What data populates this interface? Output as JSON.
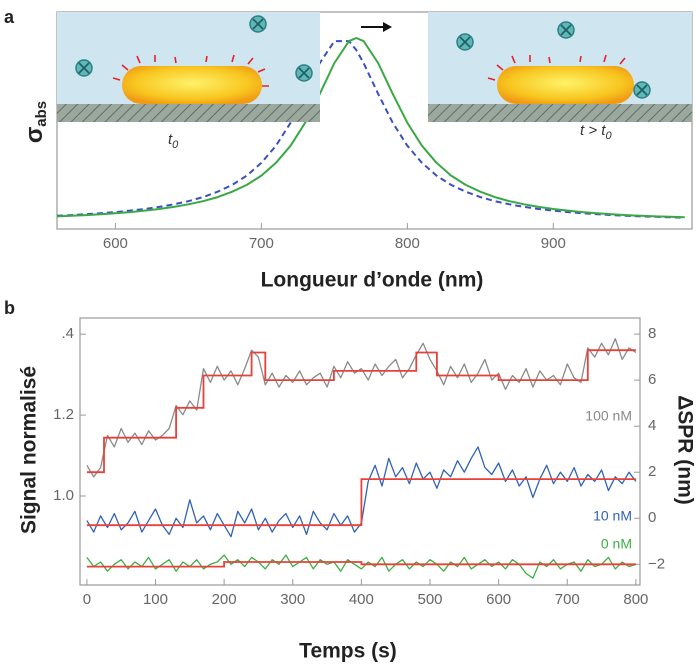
{
  "chart_data": [
    {
      "type": "line",
      "panel_label": "a",
      "x_label": "Longueur d’onde  (nm)",
      "y_label": {
        "main": "σ",
        "sub": "abs"
      },
      "xlim": [
        560,
        995
      ],
      "ylim": [
        0,
        1
      ],
      "xticks": [
        600,
        700,
        800,
        900
      ],
      "x": [
        560,
        570,
        580,
        590,
        600,
        610,
        620,
        630,
        640,
        650,
        660,
        670,
        680,
        690,
        700,
        710,
        720,
        730,
        740,
        750,
        760,
        765,
        770,
        780,
        790,
        800,
        810,
        820,
        830,
        840,
        850,
        860,
        870,
        880,
        890,
        900,
        910,
        920,
        930,
        940,
        950,
        960,
        970,
        980,
        990
      ],
      "series": [
        {
          "color": "#3b4fc4",
          "style": "dashed",
          "values": [
            0.061,
            0.064,
            0.068,
            0.073,
            0.078,
            0.085,
            0.092,
            0.102,
            0.114,
            0.128,
            0.147,
            0.172,
            0.203,
            0.246,
            0.305,
            0.384,
            0.49,
            0.623,
            0.765,
            0.866,
            0.866,
            0.825,
            0.765,
            0.623,
            0.49,
            0.384,
            0.305,
            0.246,
            0.203,
            0.172,
            0.147,
            0.128,
            0.114,
            0.102,
            0.092,
            0.085,
            0.078,
            0.073,
            0.068,
            0.064,
            0.061,
            0.058,
            0.056,
            0.054,
            0.052
          ]
        },
        {
          "color": "#3aa845",
          "style": "solid",
          "values": [
            0.058,
            0.061,
            0.064,
            0.068,
            0.073,
            0.078,
            0.085,
            0.092,
            0.102,
            0.114,
            0.128,
            0.147,
            0.172,
            0.203,
            0.246,
            0.305,
            0.384,
            0.49,
            0.623,
            0.765,
            0.866,
            0.88,
            0.866,
            0.765,
            0.623,
            0.49,
            0.384,
            0.305,
            0.246,
            0.203,
            0.172,
            0.147,
            0.128,
            0.114,
            0.102,
            0.092,
            0.085,
            0.078,
            0.073,
            0.068,
            0.064,
            0.061,
            0.058,
            0.056,
            0.054
          ]
        }
      ],
      "insets": [
        {
          "main": "t",
          "sub": "0"
        },
        {
          "main": "t > t",
          "sub": "0"
        }
      ]
    },
    {
      "type": "line",
      "panel_label": "b",
      "x_label": "Temps  (s)",
      "y_label": "Signal normalisé",
      "y2_label": "ΔSPR  (nm)",
      "xlim": [
        -10,
        806
      ],
      "ylim": [
        0.78,
        1.44
      ],
      "y2lim": [
        -2.9,
        8.7
      ],
      "xticks": [
        0,
        100,
        200,
        300,
        400,
        500,
        600,
        700,
        800
      ],
      "yticks": [
        {
          "value": 1.4,
          "label": ".4"
        },
        1.2,
        {
          "value": 1.0,
          "label": "1.0"
        }
      ],
      "y2ticks": [
        8,
        6,
        4,
        2,
        0,
        {
          "value": -2,
          "label": "−2"
        }
      ],
      "x": [
        0,
        10,
        20,
        30,
        40,
        50,
        60,
        70,
        80,
        90,
        100,
        110,
        120,
        130,
        140,
        150,
        160,
        170,
        180,
        190,
        200,
        210,
        220,
        230,
        240,
        250,
        260,
        270,
        280,
        290,
        300,
        310,
        320,
        330,
        340,
        350,
        360,
        370,
        380,
        390,
        400,
        410,
        420,
        430,
        440,
        450,
        460,
        470,
        480,
        490,
        500,
        510,
        520,
        530,
        540,
        550,
        560,
        570,
        580,
        590,
        600,
        610,
        620,
        630,
        640,
        650,
        660,
        670,
        680,
        690,
        700,
        710,
        720,
        730,
        740,
        750,
        760,
        770,
        780,
        790,
        800
      ],
      "series": [
        {
          "name": "100 nM",
          "color": "#8a8a8a",
          "axis": "y2",
          "values": [
            2.3,
            1.8,
            2.2,
            3.6,
            3.1,
            3.9,
            3.3,
            3.7,
            3.2,
            3.8,
            3.4,
            3.6,
            3.9,
            4.9,
            4.5,
            5.1,
            4.7,
            6.5,
            5.9,
            6.6,
            6.0,
            6.4,
            5.8,
            6.5,
            7.3,
            7.0,
            5.8,
            6.3,
            5.7,
            6.2,
            5.9,
            6.4,
            5.8,
            6.1,
            6.3,
            5.7,
            6.6,
            6.1,
            6.8,
            6.3,
            6.5,
            6.0,
            6.7,
            6.2,
            6.6,
            6.9,
            6.1,
            6.5,
            7.1,
            7.6,
            6.9,
            6.4,
            5.8,
            6.6,
            6.1,
            6.7,
            5.9,
            6.3,
            6.9,
            6.0,
            6.3,
            5.6,
            6.2,
            5.9,
            6.5,
            5.7,
            6.4,
            6.0,
            6.2,
            5.8,
            6.7,
            6.1,
            5.9,
            7.4,
            7.0,
            7.6,
            7.1,
            7.8,
            6.9,
            7.4,
            7.2
          ]
        },
        {
          "name": "10 nM",
          "color": "#2f62b8",
          "axis": "y2",
          "values": [
            -0.1,
            -0.6,
            0.1,
            -0.4,
            0.2,
            -0.5,
            -0.2,
            0.3,
            -0.6,
            -0.1,
            0.4,
            -0.3,
            -0.7,
            0.0,
            -0.4,
            0.8,
            -0.2,
            0.1,
            -0.5,
            0.2,
            -0.3,
            -0.8,
            0.3,
            -0.2,
            0.4,
            -0.5,
            0.0,
            -0.6,
            -0.1,
            0.2,
            -0.4,
            0.1,
            -0.7,
            0.3,
            -0.2,
            -0.5,
            0.2,
            -0.3,
            0.1,
            -0.6,
            -0.2,
            1.6,
            2.3,
            1.4,
            2.6,
            1.8,
            2.2,
            1.5,
            2.4,
            1.7,
            2.0,
            1.3,
            2.1,
            1.8,
            2.5,
            2.0,
            2.6,
            3.1,
            2.2,
            1.9,
            2.4,
            1.6,
            2.1,
            1.4,
            1.8,
            0.9,
            1.7,
            2.3,
            1.5,
            2.0,
            1.6,
            2.2,
            1.4,
            1.9,
            1.6,
            2.1,
            1.2,
            1.8,
            1.5,
            2.0,
            1.6
          ]
        },
        {
          "name": "0 nM",
          "color": "#3cb043",
          "axis": "y2",
          "values": [
            -1.7,
            -2.1,
            -1.9,
            -2.3,
            -2.0,
            -1.8,
            -2.2,
            -1.9,
            -2.1,
            -1.7,
            -2.2,
            -2.0,
            -1.8,
            -2.3,
            -1.9,
            -2.1,
            -1.8,
            -2.2,
            -2.0,
            -1.9,
            -1.6,
            -2.0,
            -1.8,
            -2.1,
            -1.7,
            -1.9,
            -2.2,
            -1.8,
            -2.0,
            -1.6,
            -2.1,
            -1.9,
            -1.7,
            -2.2,
            -1.8,
            -2.0,
            -1.9,
            -2.3,
            -1.8,
            -2.0,
            -2.2,
            -1.9,
            -2.1,
            -1.7,
            -2.3,
            -2.0,
            -1.8,
            -2.2,
            -1.9,
            -2.1,
            -1.8,
            -2.0,
            -2.3,
            -1.9,
            -2.1,
            -1.7,
            -2.2,
            -2.0,
            -1.8,
            -2.1,
            -1.9,
            -2.2,
            -1.8,
            -2.0,
            -2.4,
            -2.6,
            -1.9,
            -2.1,
            -1.8,
            -2.2,
            -2.0,
            -1.9,
            -2.3,
            -1.8,
            -2.1,
            -2.0,
            -1.7,
            -2.2,
            -1.9,
            -2.1,
            -2.0
          ]
        }
      ],
      "fits": [
        {
          "color": "#e8413a",
          "axis": "y2",
          "x": [
            0,
            25,
            25,
            130,
            130,
            170,
            170,
            240,
            240,
            260,
            260,
            360,
            360,
            480,
            480,
            510,
            510,
            600,
            600,
            730,
            730,
            800
          ],
          "values": [
            2.0,
            2.0,
            3.5,
            3.5,
            4.8,
            4.8,
            6.2,
            6.2,
            7.2,
            7.2,
            6.0,
            6.0,
            6.4,
            6.4,
            7.2,
            7.2,
            6.2,
            6.2,
            6.0,
            6.0,
            7.3,
            7.3
          ]
        },
        {
          "color": "#e8413a",
          "axis": "y2",
          "x": [
            0,
            400,
            400,
            800
          ],
          "values": [
            -0.3,
            -0.3,
            1.7,
            1.7
          ]
        },
        {
          "color": "#e8413a",
          "axis": "y2",
          "x": [
            0,
            200,
            200,
            400,
            400,
            800
          ],
          "values": [
            -2.1,
            -2.1,
            -1.9,
            -1.9,
            -2.0,
            -2.0
          ]
        }
      ]
    }
  ]
}
